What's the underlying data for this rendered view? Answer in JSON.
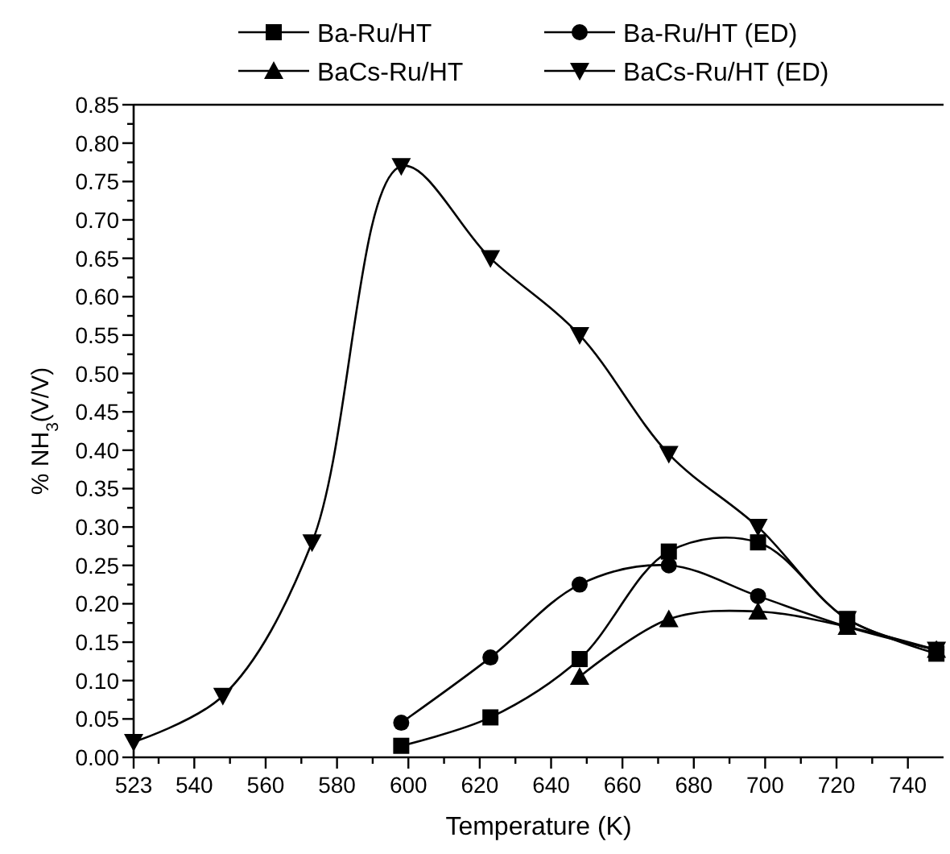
{
  "chart_data": {
    "type": "line",
    "xlabel": "Temperature (K)",
    "ylabel": "% NH$_{3}$(V/V)",
    "xlim": [
      523,
      750
    ],
    "xticks": [
      523,
      {
        "value": 530,
        "label": null
      },
      540,
      {
        "value": 550,
        "label": null
      },
      560,
      {
        "value": 570,
        "label": null
      },
      580,
      {
        "value": 590,
        "label": null
      },
      600,
      {
        "value": 610,
        "label": null
      },
      620,
      {
        "value": 630,
        "label": null
      },
      640,
      {
        "value": 650,
        "label": null
      },
      660,
      {
        "value": 670,
        "label": null
      },
      680,
      {
        "value": 690,
        "label": null
      },
      700,
      {
        "value": 710,
        "label": null
      },
      720,
      {
        "value": 730,
        "label": null
      },
      740
    ],
    "ylim": [
      0,
      0.85
    ],
    "yticks": [
      {
        "value": 0,
        "label": "0.00"
      },
      {
        "value": 0.025,
        "label": null
      },
      {
        "value": 0.05,
        "label": "0.05"
      },
      {
        "value": 0.075,
        "label": null
      },
      {
        "value": 0.1,
        "label": "0.10"
      },
      {
        "value": 0.125,
        "label": null
      },
      {
        "value": 0.15,
        "label": "0.15"
      },
      {
        "value": 0.175,
        "label": null
      },
      {
        "value": 0.2,
        "label": "0.20"
      },
      {
        "value": 0.225,
        "label": null
      },
      {
        "value": 0.25,
        "label": "0.25"
      },
      {
        "value": 0.275,
        "label": null
      },
      {
        "value": 0.3,
        "label": "0.30"
      },
      {
        "value": 0.325,
        "label": null
      },
      {
        "value": 0.35,
        "label": "0.35"
      },
      {
        "value": 0.375,
        "label": null
      },
      {
        "value": 0.4,
        "label": "0.40"
      },
      {
        "value": 0.425,
        "label": null
      },
      {
        "value": 0.45,
        "label": "0.45"
      },
      {
        "value": 0.475,
        "label": null
      },
      {
        "value": 0.5,
        "label": "0.50"
      },
      {
        "value": 0.525,
        "label": null
      },
      {
        "value": 0.55,
        "label": "0.55"
      },
      {
        "value": 0.575,
        "label": null
      },
      {
        "value": 0.6,
        "label": "0.60"
      },
      {
        "value": 0.625,
        "label": null
      },
      {
        "value": 0.65,
        "label": "0.65"
      },
      {
        "value": 0.675,
        "label": null
      },
      {
        "value": 0.7,
        "label": "0.70"
      },
      {
        "value": 0.725,
        "label": null
      },
      {
        "value": 0.75,
        "label": "0.75"
      },
      {
        "value": 0.775,
        "label": null
      },
      {
        "value": 0.8,
        "label": "0.80"
      },
      {
        "value": 0.825,
        "label": null
      },
      {
        "value": 0.85,
        "label": "0.85"
      }
    ],
    "legend": "top",
    "grid": false,
    "line_style": "solid",
    "series": [
      {
        "name": "Ba-Ru/HT",
        "color": "#000000",
        "marker": "square",
        "x": [
          598,
          623,
          648,
          673,
          698,
          723,
          748
        ],
        "values": [
          0.015,
          0.052,
          0.128,
          0.268,
          0.28,
          0.18,
          0.135
        ]
      },
      {
        "name": "Ba-Ru/HT (ED)",
        "color": "#000000",
        "marker": "circle",
        "x": [
          598,
          623,
          648,
          673,
          698,
          723,
          748
        ],
        "values": [
          0.045,
          0.13,
          0.225,
          0.25,
          0.21,
          0.17,
          0.14
        ]
      },
      {
        "name": "BaCs-Ru/HT",
        "color": "#000000",
        "marker": "triangle",
        "x": [
          648,
          673,
          698,
          723,
          748
        ],
        "values": [
          0.105,
          0.18,
          0.19,
          0.17,
          0.14
        ]
      },
      {
        "name": "BaCs-Ru/HT (ED)",
        "color": "#000000",
        "marker": "triangle-down",
        "x": [
          523,
          548,
          573,
          598,
          623,
          648,
          673,
          698,
          723,
          748
        ],
        "values": [
          0.02,
          0.08,
          0.28,
          0.77,
          0.65,
          0.55,
          0.395,
          0.3,
          0.18,
          0.14
        ]
      }
    ]
  }
}
